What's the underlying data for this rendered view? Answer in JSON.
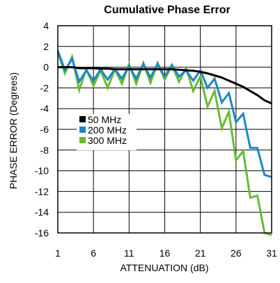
{
  "chart_data": {
    "type": "line",
    "title": "Cumulative Phase Error",
    "xlabel": "ATTENUATION (dB)",
    "ylabel": "PHASE ERROR (Degrees)",
    "xlim": [
      1,
      31
    ],
    "ylim": [
      -16,
      4
    ],
    "x_ticks": [
      "1",
      "6",
      "11",
      "16",
      "21",
      "26",
      "31"
    ],
    "y_ticks": [
      "4",
      "2",
      "0",
      "-2",
      "-4",
      "-6",
      "-8",
      "-10",
      "-12",
      "-14",
      "-16"
    ],
    "grid": true,
    "legend_position": "middle-left",
    "x": [
      1,
      2,
      3,
      4,
      5,
      6,
      7,
      8,
      9,
      10,
      11,
      12,
      13,
      14,
      15,
      16,
      17,
      18,
      19,
      20,
      21,
      22,
      23,
      24,
      25,
      26,
      27,
      28,
      29,
      30,
      31
    ],
    "series": [
      {
        "name": "50 MHz",
        "color": "#000000",
        "values": [
          0,
          0,
          0,
          -0.1,
          -0.1,
          -0.1,
          -0.15,
          -0.15,
          -0.2,
          -0.2,
          -0.2,
          -0.2,
          -0.2,
          -0.2,
          -0.2,
          -0.2,
          -0.2,
          -0.25,
          -0.3,
          -0.35,
          -0.45,
          -0.6,
          -0.8,
          -1.0,
          -1.3,
          -1.6,
          -1.9,
          -2.3,
          -2.7,
          -3.2,
          -3.5
        ]
      },
      {
        "name": "200 MHz",
        "color": "#1b87c8",
        "values": [
          1.6,
          -0.3,
          0.8,
          -1.4,
          -0.3,
          -1.3,
          -0.2,
          -1.2,
          -0.2,
          -1.1,
          0.1,
          -1.1,
          0.3,
          -1.0,
          0.3,
          -0.9,
          0.2,
          -0.9,
          -0.3,
          -1.3,
          -0.3,
          -2.0,
          -1.1,
          -3.4,
          -2.5,
          -5.3,
          -4.5,
          -7.8,
          -7.8,
          -10.4,
          -10.6
        ]
      },
      {
        "name": "300 MHz",
        "color": "#66bb33",
        "values": [
          1.4,
          -0.6,
          1.0,
          -2.2,
          -0.2,
          -1.8,
          -0.3,
          -2.0,
          -0.2,
          -1.6,
          0.3,
          -1.6,
          0.4,
          -1.5,
          0.4,
          -1.2,
          0.2,
          -1.4,
          -0.1,
          -2.3,
          -0.9,
          -3.8,
          -2.3,
          -5.9,
          -4.3,
          -9.0,
          -8.1,
          -12.6,
          -12.4,
          -16.0,
          -16.2
        ]
      }
    ]
  }
}
